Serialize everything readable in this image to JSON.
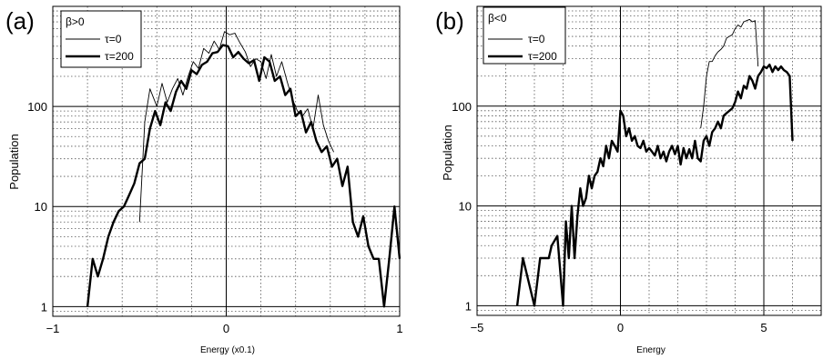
{
  "chart_data": [
    {
      "type": "line",
      "panel": "(a)",
      "xlabel": "Energy (x0.1)",
      "ylabel": "Population",
      "xlim": [
        -1,
        1
      ],
      "ylim": [
        0.8,
        1000
      ],
      "yscale": "log",
      "xticks": [
        -1,
        0,
        1
      ],
      "xtick_labels": [
        "−1",
        "0",
        "1"
      ],
      "yticks": [
        1,
        10,
        100
      ],
      "ytick_labels": [
        "1",
        "10",
        "100"
      ],
      "grid": true,
      "legend": {
        "position": "top-left",
        "title": "β>0"
      },
      "series": [
        {
          "name": "τ=0",
          "style": "thin",
          "x": [
            -0.5,
            -0.47,
            -0.44,
            -0.4,
            -0.37,
            -0.34,
            -0.31,
            -0.28,
            -0.25,
            -0.22,
            -0.19,
            -0.16,
            -0.13,
            -0.1,
            -0.07,
            -0.04,
            -0.01,
            0.02,
            0.05,
            0.08,
            0.11,
            0.14,
            0.17,
            0.2,
            0.23,
            0.26,
            0.29,
            0.32,
            0.35,
            0.38,
            0.41,
            0.44,
            0.47,
            0.5,
            0.53,
            0.56,
            0.59,
            0.62
          ],
          "y": [
            7,
            70,
            150,
            100,
            170,
            110,
            150,
            190,
            130,
            200,
            280,
            240,
            380,
            340,
            450,
            370,
            560,
            520,
            540,
            430,
            350,
            250,
            300,
            280,
            190,
            330,
            200,
            280,
            180,
            120,
            90,
            80,
            95,
            60,
            130,
            65,
            45,
            35
          ]
        },
        {
          "name": "τ=200",
          "style": "thick",
          "x": [
            -0.8,
            -0.77,
            -0.74,
            -0.71,
            -0.68,
            -0.65,
            -0.62,
            -0.59,
            -0.56,
            -0.53,
            -0.5,
            -0.47,
            -0.44,
            -0.41,
            -0.38,
            -0.35,
            -0.32,
            -0.29,
            -0.26,
            -0.23,
            -0.2,
            -0.17,
            -0.14,
            -0.11,
            -0.08,
            -0.05,
            -0.02,
            0.01,
            0.04,
            0.07,
            0.1,
            0.13,
            0.16,
            0.19,
            0.22,
            0.25,
            0.28,
            0.31,
            0.34,
            0.37,
            0.4,
            0.43,
            0.46,
            0.49,
            0.52,
            0.55,
            0.58,
            0.61,
            0.64,
            0.67,
            0.7,
            0.73,
            0.76,
            0.79,
            0.82,
            0.85,
            0.88,
            0.91,
            0.94,
            0.97,
            1.0
          ],
          "y": [
            1,
            3,
            2,
            3,
            5,
            7,
            9,
            10,
            13,
            17,
            27,
            30,
            60,
            90,
            65,
            110,
            90,
            140,
            180,
            150,
            230,
            210,
            260,
            280,
            340,
            350,
            410,
            400,
            310,
            350,
            300,
            270,
            290,
            180,
            310,
            280,
            180,
            200,
            130,
            150,
            80,
            90,
            55,
            70,
            45,
            35,
            40,
            25,
            30,
            16,
            25,
            7,
            5,
            8,
            4,
            3,
            3,
            1,
            3,
            10,
            3
          ]
        }
      ]
    },
    {
      "type": "line",
      "panel": "(b)",
      "xlabel": "Energy",
      "ylabel": "Population",
      "xlim": [
        -5,
        7
      ],
      "ylim": [
        0.8,
        1000
      ],
      "yscale": "log",
      "xticks": [
        -5,
        0,
        5
      ],
      "xtick_labels": [
        "−5",
        "0",
        "5"
      ],
      "yticks": [
        1,
        10,
        100
      ],
      "ytick_labels": [
        "1",
        "10",
        "100"
      ],
      "grid": true,
      "legend": {
        "position": "top-left",
        "title": "β<0"
      },
      "series": [
        {
          "name": "τ=0",
          "style": "thin",
          "x": [
            2.8,
            2.9,
            3.0,
            3.1,
            3.2,
            3.3,
            3.4,
            3.5,
            3.6,
            3.7,
            3.8,
            3.9,
            4.0,
            4.1,
            4.2,
            4.3,
            4.4,
            4.5,
            4.6,
            4.7,
            4.8
          ],
          "y": [
            60,
            100,
            200,
            280,
            280,
            320,
            350,
            370,
            400,
            480,
            500,
            520,
            600,
            650,
            620,
            700,
            720,
            740,
            700,
            720,
            250
          ]
        },
        {
          "name": "τ=200",
          "style": "thick",
          "x": [
            -3.6,
            -3.4,
            -3.0,
            -2.8,
            -2.5,
            -2.4,
            -2.2,
            -2.0,
            -1.9,
            -1.8,
            -1.7,
            -1.6,
            -1.5,
            -1.4,
            -1.3,
            -1.2,
            -1.1,
            -1.0,
            -0.9,
            -0.8,
            -0.7,
            -0.6,
            -0.5,
            -0.4,
            -0.3,
            -0.2,
            -0.1,
            0.0,
            0.1,
            0.2,
            0.3,
            0.4,
            0.5,
            0.6,
            0.7,
            0.8,
            0.9,
            1.0,
            1.1,
            1.2,
            1.3,
            1.4,
            1.5,
            1.6,
            1.7,
            1.8,
            1.9,
            2.0,
            2.1,
            2.2,
            2.3,
            2.4,
            2.5,
            2.6,
            2.7,
            2.8,
            2.9,
            3.0,
            3.1,
            3.2,
            3.3,
            3.4,
            3.5,
            3.6,
            3.7,
            3.8,
            3.9,
            4.0,
            4.1,
            4.2,
            4.3,
            4.4,
            4.5,
            4.6,
            4.7,
            4.8,
            4.9,
            5.0,
            5.1,
            5.2,
            5.3,
            5.4,
            5.5,
            5.6,
            5.7,
            5.8,
            5.9,
            6.0
          ],
          "y": [
            1,
            3,
            1,
            3,
            3,
            4,
            5,
            1,
            7,
            3,
            10,
            3,
            8,
            15,
            10,
            12,
            20,
            15,
            20,
            22,
            30,
            25,
            40,
            30,
            45,
            40,
            35,
            90,
            80,
            50,
            60,
            45,
            50,
            40,
            38,
            45,
            35,
            38,
            35,
            32,
            40,
            30,
            35,
            28,
            35,
            40,
            33,
            40,
            26,
            38,
            30,
            37,
            30,
            45,
            30,
            28,
            45,
            50,
            40,
            55,
            60,
            70,
            60,
            80,
            85,
            90,
            95,
            110,
            140,
            120,
            160,
            150,
            200,
            180,
            150,
            200,
            220,
            250,
            240,
            260,
            220,
            250,
            230,
            250,
            230,
            220,
            200,
            45
          ]
        }
      ]
    }
  ]
}
